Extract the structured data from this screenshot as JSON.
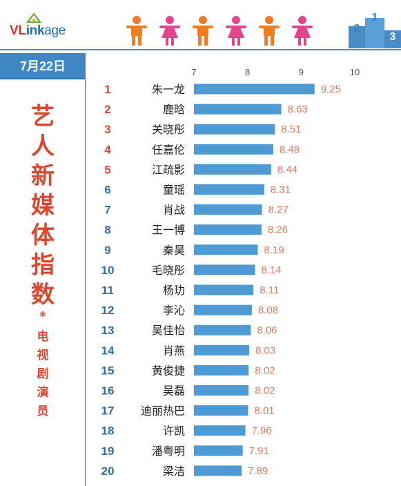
{
  "logo": {
    "part1": "VL",
    "part2": "ink",
    "part3": "age"
  },
  "header": {
    "date": "7月22日",
    "title_chars": [
      "艺",
      "人",
      "新",
      "媒",
      "体",
      "指",
      "数"
    ],
    "star": "*",
    "subtitle_chars": [
      "电",
      "视",
      "剧",
      "演",
      "员"
    ],
    "podium_labels": [
      "2",
      "1",
      "3"
    ]
  },
  "colors": {
    "bar": "#4e9ad4",
    "top_rank": "#e0452e",
    "rank": "#2f6ea8",
    "value_label": "#e07a5f",
    "male_icon": "#f47b20",
    "female_icon": "#e6448f",
    "accent": "#3f88c5"
  },
  "people_icons": [
    "male-icon",
    "female-icon",
    "male-icon",
    "female-icon",
    "male-icon",
    "female-icon"
  ],
  "chart_data": {
    "type": "bar",
    "orientation": "horizontal",
    "xlim": [
      7,
      10
    ],
    "ticks": [
      7,
      8,
      9,
      10
    ],
    "tick_position": "top",
    "grid": false,
    "ranks": [
      1,
      2,
      3,
      4,
      5,
      6,
      7,
      8,
      9,
      10,
      11,
      12,
      13,
      14,
      15,
      16,
      17,
      18,
      19,
      20
    ],
    "categories": [
      "朱一龙",
      "鹿晗",
      "关晓彤",
      "任嘉伦",
      "江疏影",
      "童瑶",
      "肖战",
      "王一博",
      "秦昊",
      "毛晓彤",
      "杨玏",
      "李沁",
      "吴佳怡",
      "肖燕",
      "黄俊捷",
      "吴磊",
      "迪丽热巴",
      "许凯",
      "潘粤明",
      "梁洁"
    ],
    "values": [
      9.25,
      8.63,
      8.51,
      8.48,
      8.44,
      8.31,
      8.27,
      8.26,
      8.19,
      8.14,
      8.11,
      8.08,
      8.06,
      8.03,
      8.02,
      8.02,
      8.01,
      7.96,
      7.91,
      7.89
    ],
    "value_labels": [
      "9.25",
      "8.63",
      "8.51",
      "8.48",
      "8.44",
      "8.31",
      "8.27",
      "8.26",
      "8.19",
      "8.14",
      "8.11",
      "8.08",
      "8.06",
      "8.03",
      "8.02",
      "8.02",
      "8.01",
      "7.96",
      "7.91",
      "7.89"
    ]
  }
}
